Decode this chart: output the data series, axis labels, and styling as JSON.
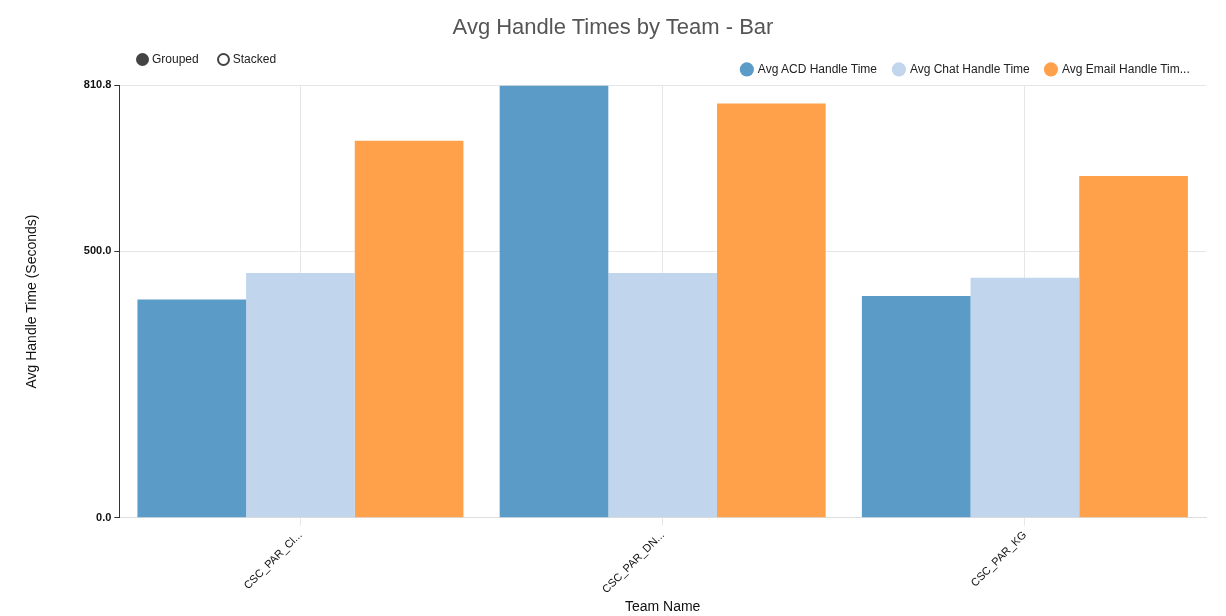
{
  "chart_data": {
    "type": "bar",
    "title": "Avg Handle Times by Team - Bar",
    "xlabel": "Team Name",
    "ylabel": "Avg Handle Time (Seconds)",
    "categories": [
      "CSC_PAR_Cl...",
      "CSC_PAR_DN...",
      "CSC_PAR_KG"
    ],
    "series": [
      {
        "name": "Avg ACD Handle Time",
        "color": "#5a9bc8",
        "values": [
          409,
          810.8,
          416
        ]
      },
      {
        "name": "Avg Chat Handle Time",
        "color": "#c1d5ec",
        "values": [
          459,
          459,
          450
        ]
      },
      {
        "name": "Avg Email Handle Tim...",
        "color": "#ffa04a",
        "values": [
          707,
          777,
          641
        ]
      }
    ],
    "ylim": [
      0,
      810.8
    ],
    "yticks": [
      {
        "value": 0,
        "label": "0.0"
      },
      {
        "value": 500,
        "label": "500.0"
      },
      {
        "value": 810.8,
        "label": "810.8"
      }
    ],
    "grid": true,
    "legend": "top right",
    "annotations": [
      "Grouped",
      "Stacked"
    ]
  }
}
